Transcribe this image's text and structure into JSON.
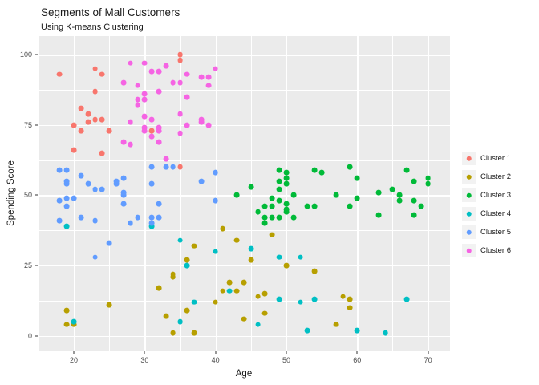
{
  "theme": {
    "background": "#FFFFFF",
    "panel_bg": "#EBEBEB",
    "grid_color": "#FFFFFF",
    "tick_label_color": "#4D4D4D",
    "text_color": "#1A1A1A",
    "legend_key_bg": "#F2F2F2"
  },
  "chart_data": {
    "type": "scatter",
    "title": "Segments of Mall Customers",
    "subtitle": "Using K-means Clustering",
    "xlabel": "Age",
    "ylabel": "Spending Score",
    "x_ticks": [
      20,
      30,
      40,
      50,
      60,
      70
    ],
    "x_minor_ticks": [
      15,
      25,
      35,
      45,
      55,
      65
    ],
    "y_ticks": [
      0,
      25,
      50,
      75,
      100
    ],
    "y_minor_ticks": [
      12.5,
      37.5,
      62.5,
      87.5
    ],
    "x_domain": [
      14.9,
      73.1
    ],
    "y_domain": [
      -5.5,
      106.6
    ],
    "grid": true,
    "legend_position": "right",
    "series": [
      {
        "name": "Cluster 1",
        "color": "#F8766D",
        "points": [
          [
            18,
            93
          ],
          [
            23,
            95
          ],
          [
            24,
            93
          ],
          [
            23,
            87
          ],
          [
            21,
            81
          ],
          [
            22,
            79
          ],
          [
            22,
            76
          ],
          [
            23,
            77
          ],
          [
            24,
            77
          ],
          [
            20,
            75
          ],
          [
            21,
            73
          ],
          [
            25,
            73
          ],
          [
            31,
            73
          ],
          [
            20,
            66
          ],
          [
            24,
            65
          ],
          [
            35,
            100
          ],
          [
            35,
            98
          ],
          [
            35,
            60
          ]
        ]
      },
      {
        "name": "Cluster 2",
        "color": "#B79F00",
        "points": [
          [
            41,
            38
          ],
          [
            48,
            36
          ],
          [
            43,
            34
          ],
          [
            37,
            32
          ],
          [
            36,
            27
          ],
          [
            45,
            27
          ],
          [
            50,
            25
          ],
          [
            54,
            23
          ],
          [
            34,
            22
          ],
          [
            34,
            21
          ],
          [
            32,
            17
          ],
          [
            42,
            19
          ],
          [
            44,
            19
          ],
          [
            41,
            16
          ],
          [
            43,
            16
          ],
          [
            46,
            14
          ],
          [
            47,
            15
          ],
          [
            40,
            12
          ],
          [
            25,
            11
          ],
          [
            19,
            9
          ],
          [
            36,
            9
          ],
          [
            19,
            4
          ],
          [
            20,
            4
          ],
          [
            33,
            7
          ],
          [
            44,
            6
          ],
          [
            47,
            8
          ],
          [
            34,
            1
          ],
          [
            37,
            1
          ],
          [
            58,
            14
          ],
          [
            59,
            13
          ],
          [
            59,
            10
          ],
          [
            57,
            4
          ]
        ]
      },
      {
        "name": "Cluster 3",
        "color": "#00BA38",
        "points": [
          [
            45,
            53
          ],
          [
            43,
            50
          ],
          [
            49,
            59
          ],
          [
            50,
            58
          ],
          [
            50,
            56
          ],
          [
            49,
            55
          ],
          [
            50,
            54
          ],
          [
            54,
            59
          ],
          [
            49,
            52
          ],
          [
            48,
            49
          ],
          [
            51,
            50
          ],
          [
            47,
            46
          ],
          [
            48,
            46
          ],
          [
            49,
            48
          ],
          [
            50,
            47
          ],
          [
            50,
            45
          ],
          [
            46,
            44
          ],
          [
            47,
            42
          ],
          [
            47,
            40
          ],
          [
            48,
            42
          ],
          [
            49,
            42
          ],
          [
            50,
            44
          ],
          [
            51,
            42
          ],
          [
            53,
            46
          ],
          [
            54,
            46
          ],
          [
            55,
            58
          ],
          [
            59,
            60
          ],
          [
            60,
            56
          ],
          [
            57,
            50
          ],
          [
            60,
            49
          ],
          [
            59,
            46
          ],
          [
            63,
            51
          ],
          [
            63,
            43
          ],
          [
            65,
            52
          ],
          [
            66,
            50
          ],
          [
            66,
            48
          ],
          [
            67,
            59
          ],
          [
            68,
            55
          ],
          [
            70,
            56
          ],
          [
            70,
            54
          ],
          [
            68,
            48
          ],
          [
            69,
            46
          ],
          [
            68,
            43
          ]
        ]
      },
      {
        "name": "Cluster 4",
        "color": "#00BFC4",
        "points": [
          [
            19,
            39
          ],
          [
            31,
            39
          ],
          [
            35,
            34
          ],
          [
            40,
            30
          ],
          [
            45,
            31
          ],
          [
            49,
            28
          ],
          [
            52,
            28
          ],
          [
            36,
            25
          ],
          [
            42,
            16
          ],
          [
            37,
            12
          ],
          [
            20,
            5
          ],
          [
            35,
            5
          ],
          [
            46,
            4
          ],
          [
            49,
            13
          ],
          [
            52,
            12
          ],
          [
            54,
            13
          ],
          [
            53,
            2
          ],
          [
            67,
            13
          ],
          [
            60,
            2
          ],
          [
            64,
            1
          ]
        ]
      },
      {
        "name": "Cluster 5",
        "color": "#619CFF",
        "points": [
          [
            31,
            60
          ],
          [
            33,
            60
          ],
          [
            34,
            60
          ],
          [
            18,
            59
          ],
          [
            19,
            59
          ],
          [
            21,
            57
          ],
          [
            19,
            55
          ],
          [
            19,
            54
          ],
          [
            22,
            54
          ],
          [
            26,
            55
          ],
          [
            26,
            54
          ],
          [
            27,
            56
          ],
          [
            23,
            52
          ],
          [
            24,
            52
          ],
          [
            31,
            54
          ],
          [
            27,
            51
          ],
          [
            27,
            50
          ],
          [
            19,
            49
          ],
          [
            20,
            49
          ],
          [
            18,
            48
          ],
          [
            19,
            46
          ],
          [
            27,
            47
          ],
          [
            32,
            47
          ],
          [
            18,
            41
          ],
          [
            21,
            42
          ],
          [
            23,
            41
          ],
          [
            28,
            40
          ],
          [
            29,
            42
          ],
          [
            31,
            42
          ],
          [
            31,
            40
          ],
          [
            32,
            42
          ],
          [
            25,
            33
          ],
          [
            23,
            28
          ],
          [
            40,
            58
          ],
          [
            38,
            55
          ],
          [
            40,
            48
          ]
        ]
      },
      {
        "name": "Cluster 6",
        "color": "#F564E3",
        "points": [
          [
            28,
            97
          ],
          [
            30,
            97
          ],
          [
            33,
            96
          ],
          [
            40,
            95
          ],
          [
            31,
            94
          ],
          [
            32,
            94
          ],
          [
            36,
            93
          ],
          [
            38,
            92
          ],
          [
            39,
            92
          ],
          [
            27,
            90
          ],
          [
            29,
            89
          ],
          [
            34,
            90
          ],
          [
            35,
            90
          ],
          [
            39,
            89
          ],
          [
            30,
            86
          ],
          [
            32,
            87
          ],
          [
            36,
            85
          ],
          [
            29,
            84
          ],
          [
            30,
            84
          ],
          [
            29,
            82
          ],
          [
            35,
            79
          ],
          [
            30,
            78
          ],
          [
            31,
            77
          ],
          [
            36,
            75
          ],
          [
            38,
            77
          ],
          [
            38,
            76
          ],
          [
            39,
            75
          ],
          [
            28,
            76
          ],
          [
            30,
            74
          ],
          [
            30,
            73
          ],
          [
            32,
            74
          ],
          [
            32,
            73
          ],
          [
            31,
            71
          ],
          [
            27,
            69
          ],
          [
            28,
            68
          ],
          [
            32,
            69
          ],
          [
            35,
            72
          ],
          [
            33,
            63
          ]
        ]
      }
    ]
  }
}
